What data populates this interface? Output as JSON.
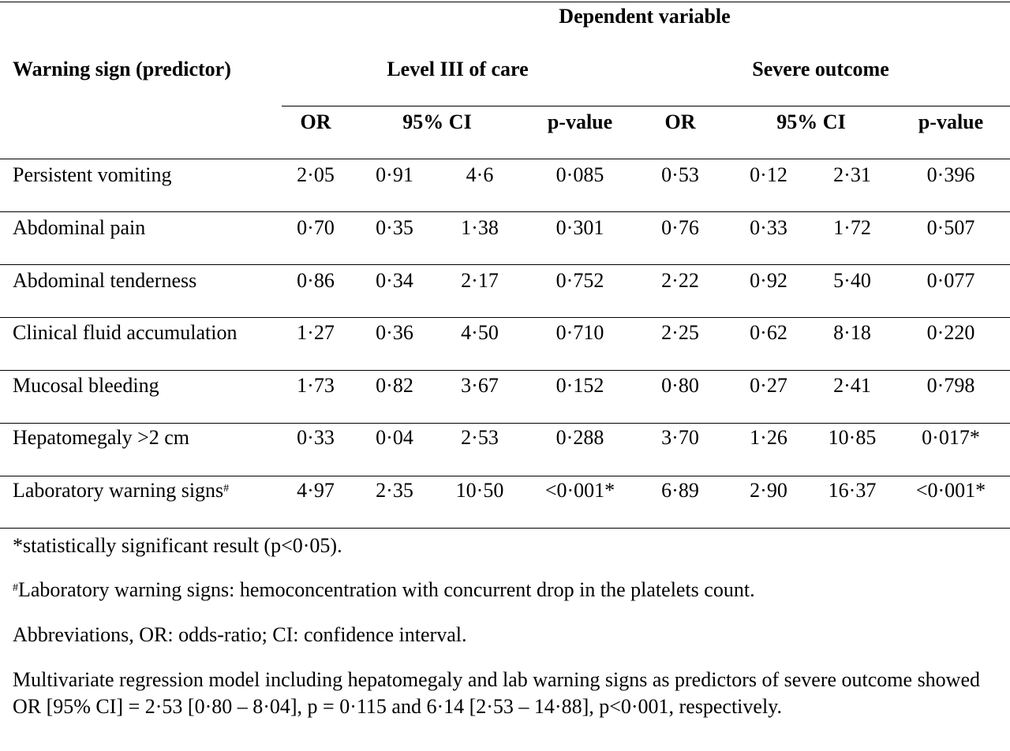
{
  "header": {
    "dependent_variable": "Dependent variable",
    "predictor": "Warning sign (predictor)",
    "group1": "Level III of care",
    "group2": "Severe outcome",
    "col_or": "OR",
    "col_ci": "95% CI",
    "col_p": "p-value"
  },
  "rows": [
    {
      "label": "Persistent vomiting",
      "sup": "",
      "or1": "2·05",
      "lo1": "0·91",
      "hi1": "4·6",
      "p1": "0·085",
      "or2": "0·53",
      "lo2": "0·12",
      "hi2": "2·31",
      "p2": "0·396"
    },
    {
      "label": "Abdominal pain",
      "sup": "",
      "or1": "0·70",
      "lo1": "0·35",
      "hi1": "1·38",
      "p1": "0·301",
      "or2": "0·76",
      "lo2": "0·33",
      "hi2": "1·72",
      "p2": "0·507"
    },
    {
      "label": "Abdominal tenderness",
      "sup": "",
      "or1": "0·86",
      "lo1": "0·34",
      "hi1": "2·17",
      "p1": "0·752",
      "or2": "2·22",
      "lo2": "0·92",
      "hi2": "5·40",
      "p2": "0·077"
    },
    {
      "label": "Clinical fluid accumulation",
      "sup": "",
      "or1": "1·27",
      "lo1": "0·36",
      "hi1": "4·50",
      "p1": "0·710",
      "or2": "2·25",
      "lo2": "0·62",
      "hi2": "8·18",
      "p2": "0·220"
    },
    {
      "label": "Mucosal bleeding",
      "sup": "",
      "or1": "1·73",
      "lo1": "0·82",
      "hi1": "3·67",
      "p1": "0·152",
      "or2": "0·80",
      "lo2": "0·27",
      "hi2": "2·41",
      "p2": "0·798"
    },
    {
      "label": "Hepatomegaly >2 cm",
      "sup": "",
      "or1": "0·33",
      "lo1": "0·04",
      "hi1": "2·53",
      "p1": "0·288",
      "or2": "3·70",
      "lo2": "1·26",
      "hi2": "10·85",
      "p2": "0·017*"
    },
    {
      "label": "Laboratory warning signs",
      "sup": "#",
      "or1": "4·97",
      "lo1": "2·35",
      "hi1": "10·50",
      "p1": "<0·001*",
      "or2": "6·89",
      "lo2": "2·90",
      "hi2": "16·37",
      "p2": "<0·001*"
    }
  ],
  "footnotes": {
    "significance": "*statistically significant result (p<0·05).",
    "lab_sup": "#",
    "lab": "Laboratory warning signs: hemoconcentration with concurrent drop in the platelets count.",
    "abbrev": "Abbreviations, OR: odds-ratio; CI: confidence interval.",
    "multivariate": "Multivariate regression model including hepatomegaly and lab warning signs as predictors of severe outcome showed OR [95% CI] = 2·53 [0·80 – 8·04], p = 0·115 and 6·14 [2·53 – 14·88], p<0·001, respectively."
  }
}
